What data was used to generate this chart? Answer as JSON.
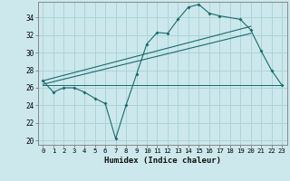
{
  "title": "",
  "xlabel": "Humidex (Indice chaleur)",
  "ylabel": "",
  "background_color": "#cce8ec",
  "grid_color": "#aad4d8",
  "line_color": "#1a6b6b",
  "xlim": [
    -0.5,
    23.5
  ],
  "ylim": [
    19.5,
    35.8
  ],
  "yticks": [
    20,
    22,
    24,
    26,
    28,
    30,
    32,
    34
  ],
  "xticks": [
    0,
    1,
    2,
    3,
    4,
    5,
    6,
    7,
    8,
    9,
    10,
    11,
    12,
    13,
    14,
    15,
    16,
    17,
    18,
    19,
    20,
    21,
    22,
    23
  ],
  "line1_x": [
    0,
    1,
    2,
    3,
    4,
    5,
    6,
    7,
    8,
    9,
    10,
    11,
    12,
    13,
    14,
    15,
    16,
    17,
    19,
    20,
    21,
    22,
    23
  ],
  "line1_y": [
    26.8,
    25.5,
    26.0,
    26.0,
    25.5,
    24.8,
    24.2,
    20.2,
    24.0,
    27.5,
    31.0,
    32.3,
    32.2,
    33.8,
    35.2,
    35.5,
    34.5,
    34.2,
    33.8,
    32.6,
    30.2,
    28.0,
    26.3
  ],
  "line2_x": [
    0,
    23
  ],
  "line2_y": [
    26.3,
    26.3
  ],
  "line3_x": [
    0,
    20
  ],
  "line3_y": [
    26.8,
    33.0
  ],
  "line4_x": [
    0,
    20
  ],
  "line4_y": [
    26.4,
    32.2
  ]
}
